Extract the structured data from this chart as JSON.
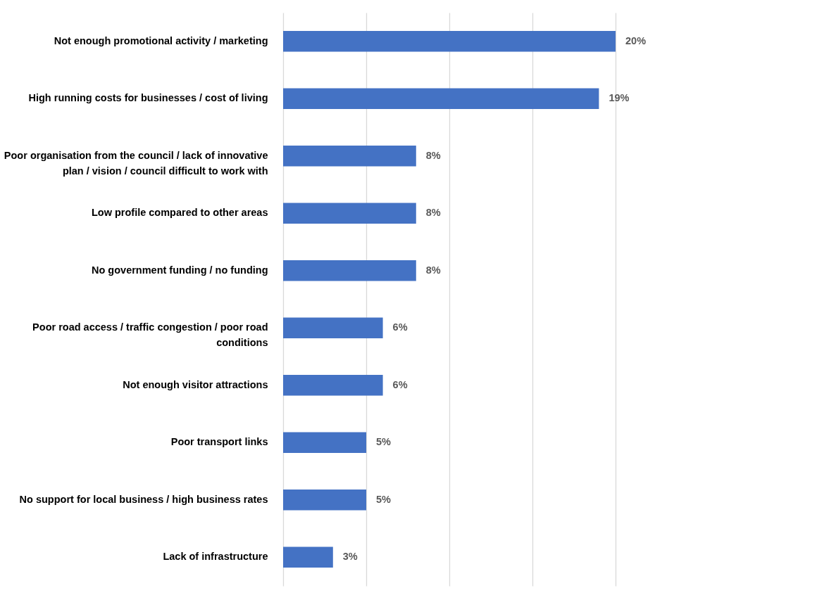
{
  "chart_data": {
    "type": "bar",
    "orientation": "horizontal",
    "categories": [
      "Not enough promotional activity / marketing",
      "High running costs for businesses / cost of living",
      "Poor organisation from the council / lack of innovative plan / vision / council difficult to work with",
      "Low profile compared to other areas",
      "No government funding / no funding",
      "Poor road access / traffic congestion / poor road conditions",
      "Not enough visitor attractions",
      "Poor transport links",
      "No support for local business / high business rates",
      "Lack of infrastructure"
    ],
    "values": [
      20,
      19,
      8,
      8,
      8,
      6,
      6,
      5,
      5,
      3
    ],
    "value_labels": [
      "20%",
      "19%",
      "8%",
      "8%",
      "8%",
      "6%",
      "6%",
      "5%",
      "5%",
      "3%"
    ],
    "color": "#4472c4",
    "xlim": [
      0,
      20
    ],
    "xticks": [
      {
        "value": 0,
        "label": null
      },
      {
        "value": 5,
        "label": null
      },
      {
        "value": 10,
        "label": null
      },
      {
        "value": 15,
        "label": null
      },
      {
        "value": 20,
        "label": null
      }
    ],
    "grid": "x",
    "tick_labels": "y"
  }
}
